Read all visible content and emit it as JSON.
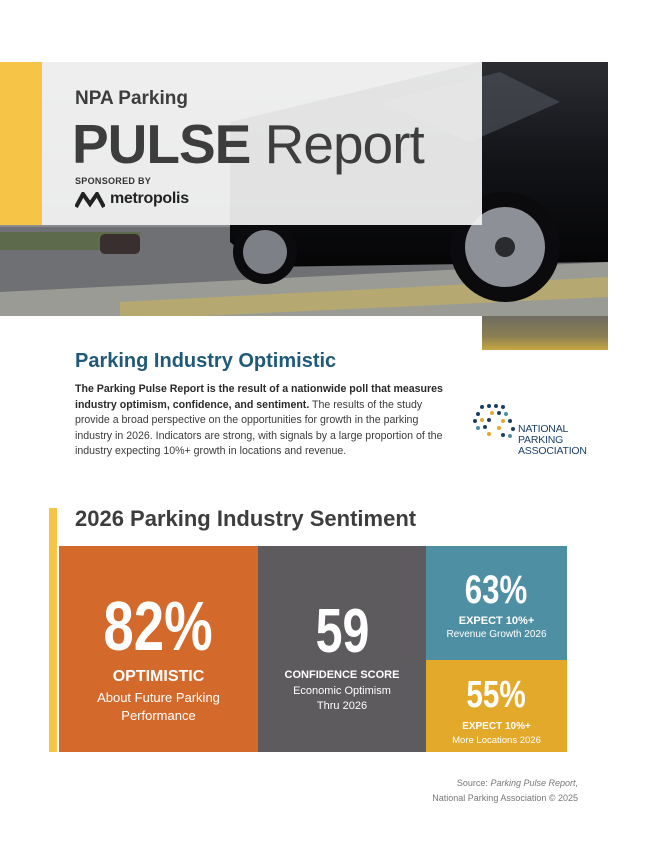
{
  "header": {
    "kicker": "NPA Parking",
    "title_bold": "PULSE",
    "title_rest": "Report",
    "sponsored_by": "SPONSORED BY",
    "sponsor": "metropolis"
  },
  "intro": {
    "heading": "Parking Industry Optimistic",
    "lead": "The Parking Pulse Report is the result of a nationwide poll that measures industry optimism, confidence, and sentiment.",
    "body": "The results of the study provide a broad perspective on the opportunities for growth in the parking industry in 2026. Indicators are strong, with signals by a large proportion of the industry expecting 10%+ growth in locations and revenue.",
    "logo_lines": [
      "NATIONAL",
      "PARKING",
      "ASSOCIATION"
    ]
  },
  "sentiment": {
    "heading": "2026 Parking Industry Sentiment",
    "stats": [
      {
        "value": "82%",
        "label": "OPTIMISTIC",
        "caption": "About Future Parking Performance"
      },
      {
        "value": "59",
        "label": "CONFIDENCE SCORE",
        "caption": "Economic Optimism Thru 2026"
      },
      {
        "value": "63%",
        "label": "EXPECT 10%+",
        "caption": "Revenue Growth 2026"
      },
      {
        "value": "55%",
        "label": "EXPECT 10%+",
        "caption": "More Locations 2026"
      }
    ]
  },
  "source": {
    "prefix": "Source:",
    "title": "Parking Pulse Report,",
    "line2": "National Parking Association © 2025"
  }
}
